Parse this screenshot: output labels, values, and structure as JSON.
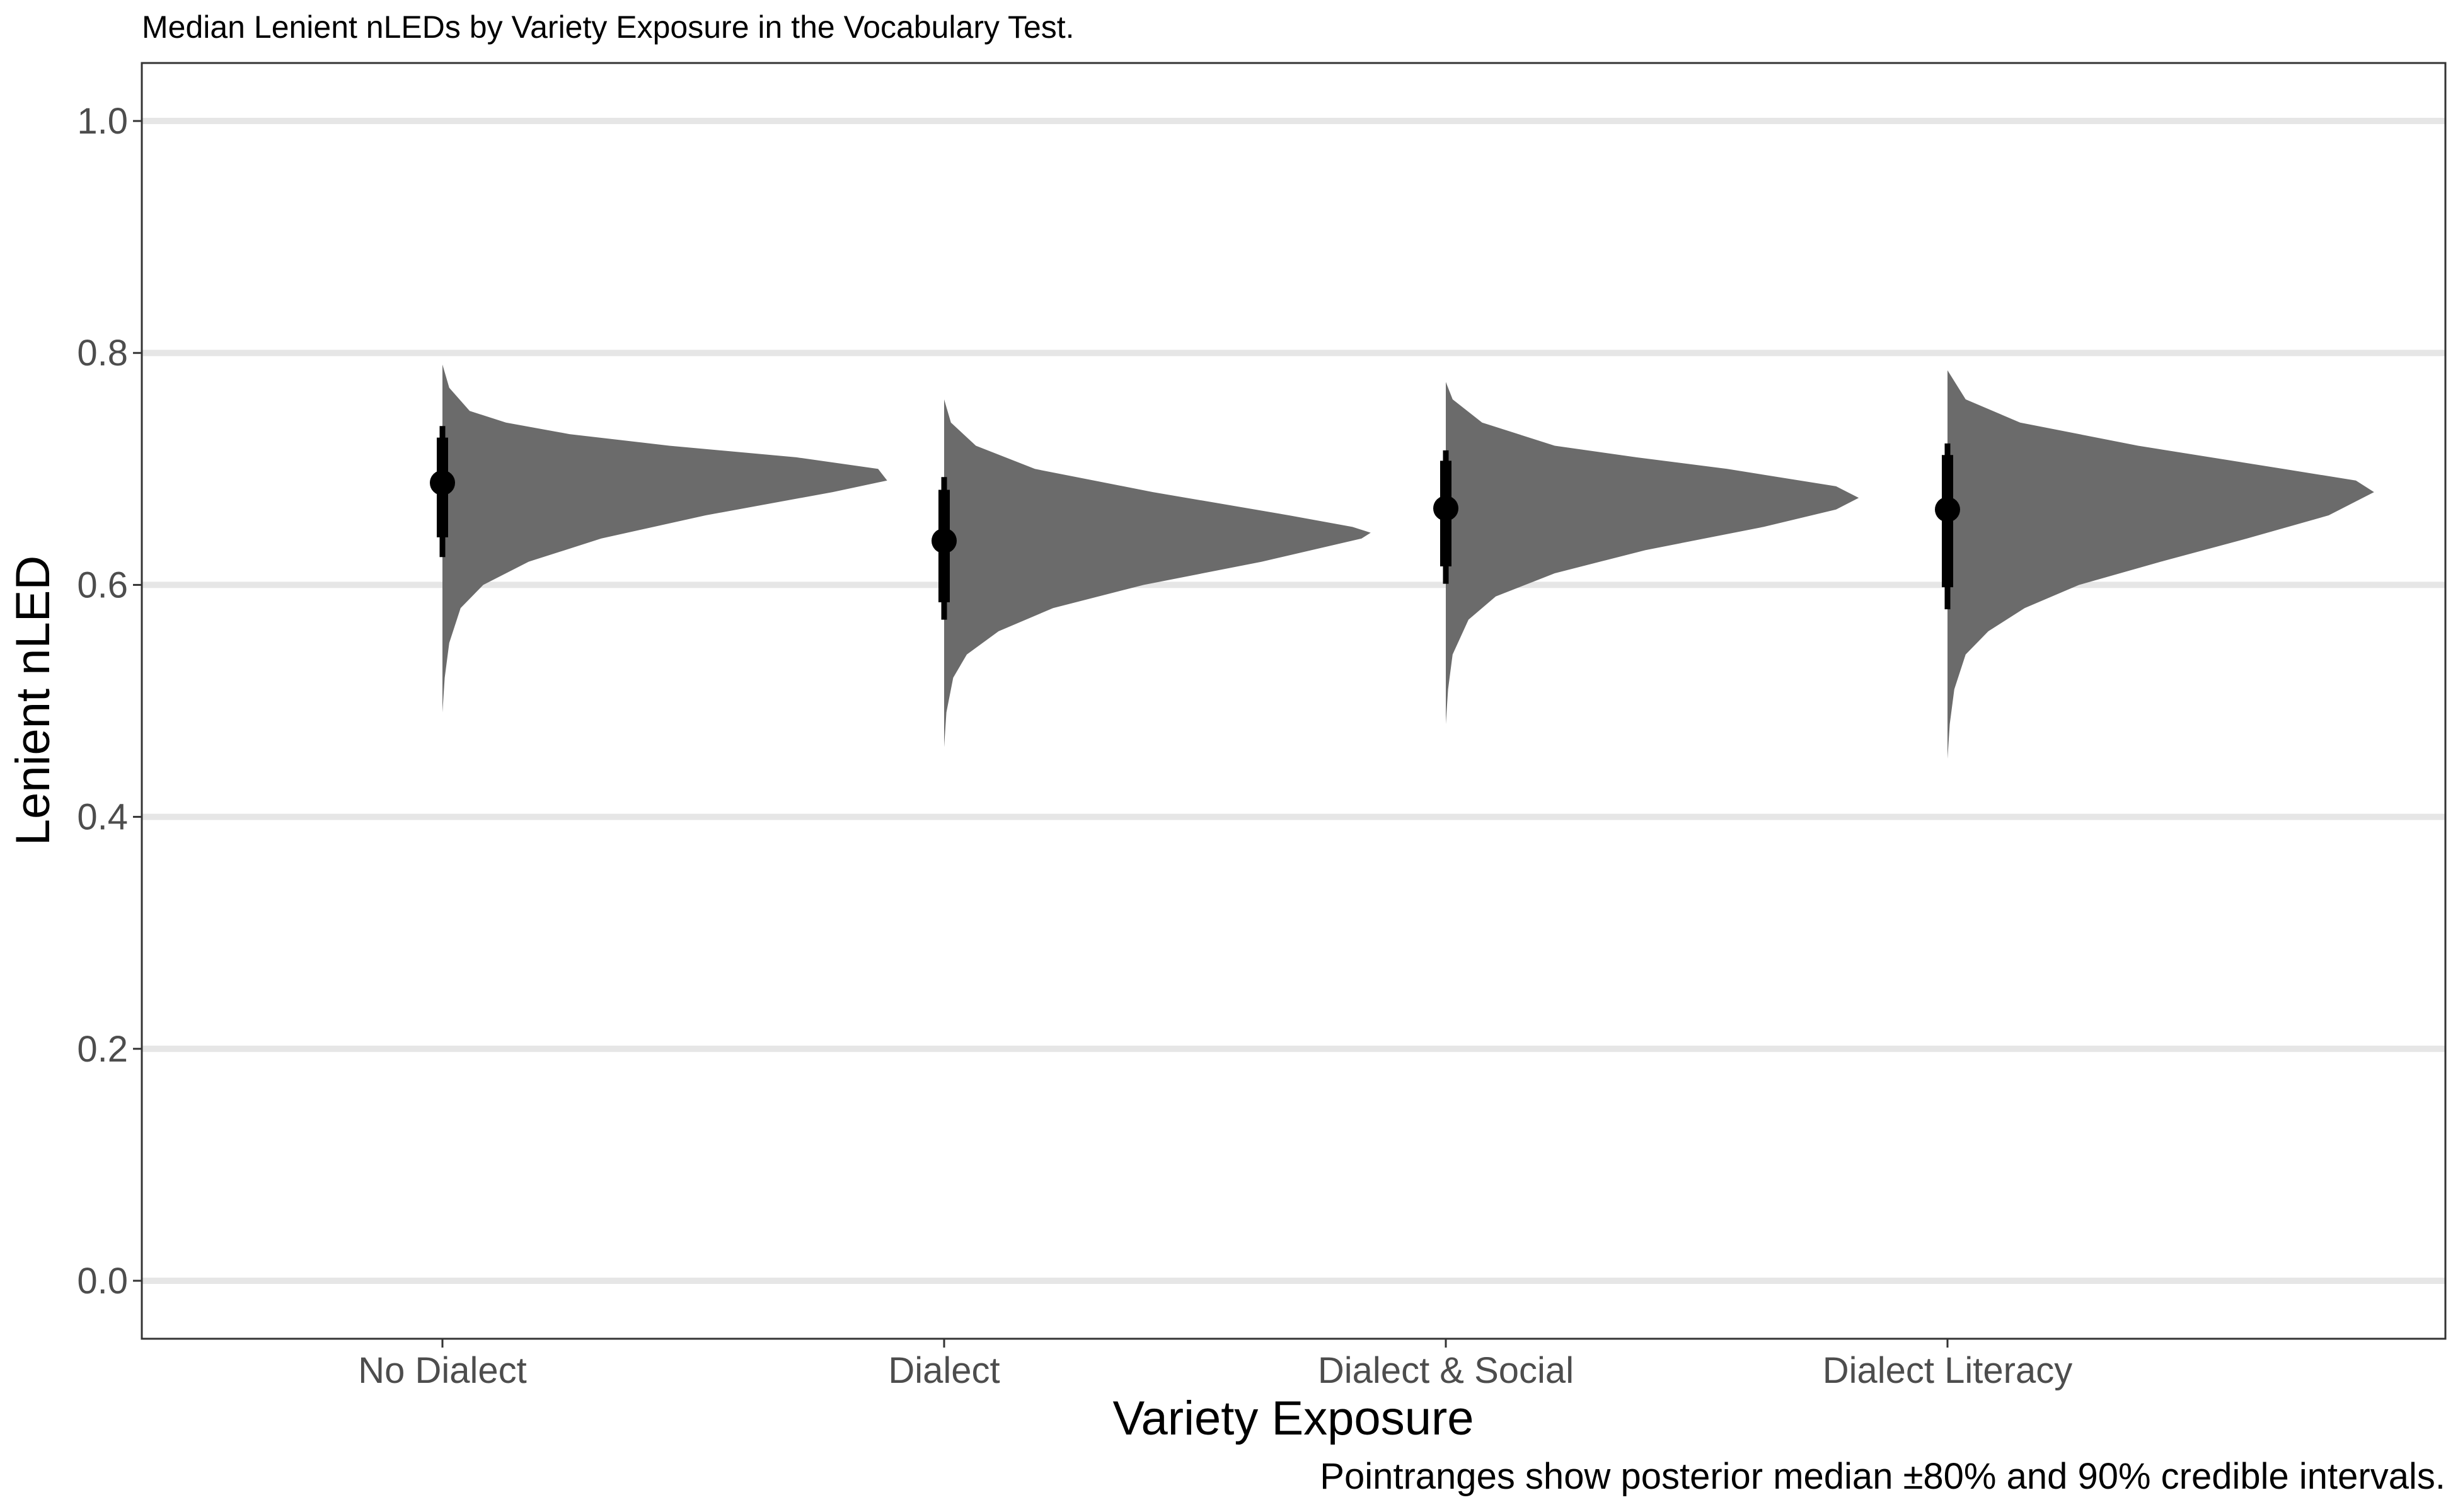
{
  "chart_data": {
    "type": "half-eye",
    "title": "Median Lenient nLEDs by Variety Exposure in the Vocabulary Test.",
    "xlabel": "Variety Exposure",
    "ylabel": "Lenient nLED",
    "caption": "Pointranges show posterior median ±80% and 90% credible intervals.",
    "categories": [
      "No Dialect",
      "Dialect",
      "Dialect & Social",
      "Dialect Literacy"
    ],
    "ylim": [
      -0.05,
      1.05
    ],
    "y_ticks": [
      0.0,
      0.2,
      0.4,
      0.6,
      0.8,
      1.0
    ],
    "y_tick_labels": [
      "0.0",
      "0.2",
      "0.4",
      "0.6",
      "0.8",
      "1.0"
    ],
    "grid": "horizontal major",
    "colors": {
      "density": "#6b6b6b",
      "grid": "#e6e6e6",
      "point": "#000000",
      "panel_border": "#333333"
    },
    "series": [
      {
        "category": "No Dialect",
        "median": 0.688,
        "interval_80": [
          0.641,
          0.727
        ],
        "interval_90": [
          0.624,
          0.737
        ],
        "density": [
          [
            0.49,
            0
          ],
          [
            0.52,
            0.005
          ],
          [
            0.55,
            0.015
          ],
          [
            0.58,
            0.04
          ],
          [
            0.6,
            0.09
          ],
          [
            0.62,
            0.19
          ],
          [
            0.64,
            0.35
          ],
          [
            0.66,
            0.58
          ],
          [
            0.68,
            0.86
          ],
          [
            0.69,
            0.98
          ],
          [
            0.7,
            0.96
          ],
          [
            0.71,
            0.78
          ],
          [
            0.72,
            0.5
          ],
          [
            0.73,
            0.28
          ],
          [
            0.74,
            0.14
          ],
          [
            0.75,
            0.06
          ],
          [
            0.77,
            0.015
          ],
          [
            0.79,
            0
          ]
        ]
      },
      {
        "category": "Dialect",
        "median": 0.638,
        "interval_80": [
          0.585,
          0.682
        ],
        "interval_90": [
          0.57,
          0.693
        ],
        "density": [
          [
            0.46,
            0
          ],
          [
            0.49,
            0.005
          ],
          [
            0.52,
            0.02
          ],
          [
            0.54,
            0.05
          ],
          [
            0.56,
            0.12
          ],
          [
            0.58,
            0.24
          ],
          [
            0.6,
            0.44
          ],
          [
            0.62,
            0.7
          ],
          [
            0.64,
            0.92
          ],
          [
            0.645,
            0.94
          ],
          [
            0.65,
            0.9
          ],
          [
            0.66,
            0.76
          ],
          [
            0.68,
            0.46
          ],
          [
            0.7,
            0.2
          ],
          [
            0.72,
            0.07
          ],
          [
            0.74,
            0.015
          ],
          [
            0.76,
            0
          ]
        ]
      },
      {
        "category": "Dialect & Social",
        "median": 0.666,
        "interval_80": [
          0.616,
          0.707
        ],
        "interval_90": [
          0.601,
          0.716
        ],
        "density": [
          [
            0.48,
            0
          ],
          [
            0.51,
            0.005
          ],
          [
            0.54,
            0.015
          ],
          [
            0.57,
            0.05
          ],
          [
            0.59,
            0.11
          ],
          [
            0.61,
            0.24
          ],
          [
            0.63,
            0.44
          ],
          [
            0.65,
            0.7
          ],
          [
            0.665,
            0.86
          ],
          [
            0.675,
            0.91
          ],
          [
            0.685,
            0.86
          ],
          [
            0.7,
            0.62
          ],
          [
            0.71,
            0.42
          ],
          [
            0.72,
            0.24
          ],
          [
            0.74,
            0.08
          ],
          [
            0.76,
            0.015
          ],
          [
            0.775,
            0
          ]
        ]
      },
      {
        "category": "Dialect Literacy",
        "median": 0.665,
        "interval_80": [
          0.598,
          0.712
        ],
        "interval_90": [
          0.579,
          0.722
        ],
        "density": [
          [
            0.45,
            0
          ],
          [
            0.48,
            0.005
          ],
          [
            0.51,
            0.015
          ],
          [
            0.54,
            0.04
          ],
          [
            0.56,
            0.09
          ],
          [
            0.58,
            0.17
          ],
          [
            0.6,
            0.29
          ],
          [
            0.62,
            0.47
          ],
          [
            0.64,
            0.66
          ],
          [
            0.66,
            0.84
          ],
          [
            0.68,
            0.94
          ],
          [
            0.69,
            0.9
          ],
          [
            0.7,
            0.74
          ],
          [
            0.72,
            0.42
          ],
          [
            0.74,
            0.16
          ],
          [
            0.76,
            0.04
          ],
          [
            0.785,
            0
          ]
        ]
      }
    ]
  }
}
